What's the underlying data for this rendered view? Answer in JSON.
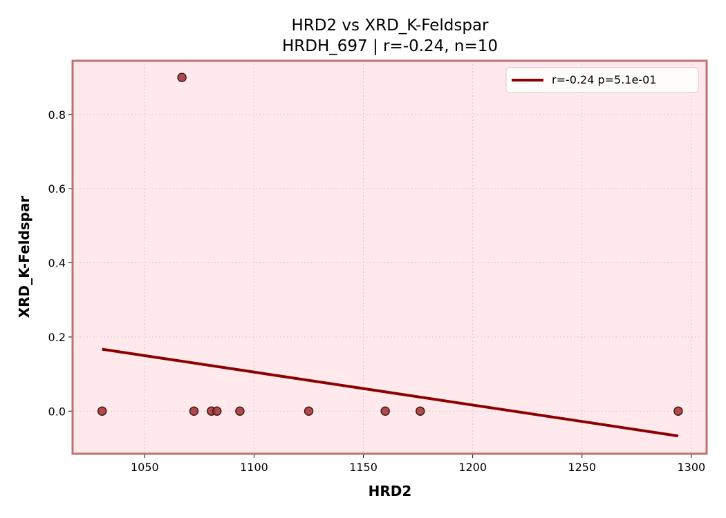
{
  "chart_data": {
    "type": "scatter",
    "title": "HRD2 vs XRD_K-Feldspar",
    "subtitle": "HRDH_697 | r=-0.24, n=10",
    "xlabel": "HRD2",
    "ylabel": "XRD_K-Feldspar",
    "xlim": [
      1017,
      1307
    ],
    "ylim": [
      -0.115,
      0.945
    ],
    "x_ticks": [
      1050,
      1100,
      1150,
      1200,
      1250,
      1300
    ],
    "y_ticks": [
      0.0,
      0.2,
      0.4,
      0.6,
      0.8
    ],
    "x_tick_labels": [
      "1050",
      "1100",
      "1150",
      "1200",
      "1250",
      "1300"
    ],
    "y_tick_labels": [
      "0.0",
      "0.2",
      "0.4",
      "0.6",
      "0.8"
    ],
    "grid": true,
    "legend_position": "top-right",
    "points": [
      {
        "x": 1030.5,
        "y": 0.0
      },
      {
        "x": 1067.0,
        "y": 0.9
      },
      {
        "x": 1072.5,
        "y": 0.0
      },
      {
        "x": 1080.5,
        "y": 0.0
      },
      {
        "x": 1083.0,
        "y": 0.0
      },
      {
        "x": 1093.5,
        "y": 0.0
      },
      {
        "x": 1125.0,
        "y": 0.0
      },
      {
        "x": 1160.0,
        "y": 0.0
      },
      {
        "x": 1176.0,
        "y": 0.0
      },
      {
        "x": 1294.0,
        "y": 0.0
      }
    ],
    "fit_line": {
      "label": "r=-0.24  p=5.1e-01",
      "x": [
        1030.5,
        1294.0
      ],
      "y": [
        0.167,
        -0.067
      ]
    },
    "colors": {
      "plot_background": "#ffe9ec",
      "frame": "#c07070",
      "points_fill": "#a83838",
      "points_edge": "#3a1a1a",
      "fit_line": "#8b0000",
      "grid": "#d8c8cc"
    }
  }
}
